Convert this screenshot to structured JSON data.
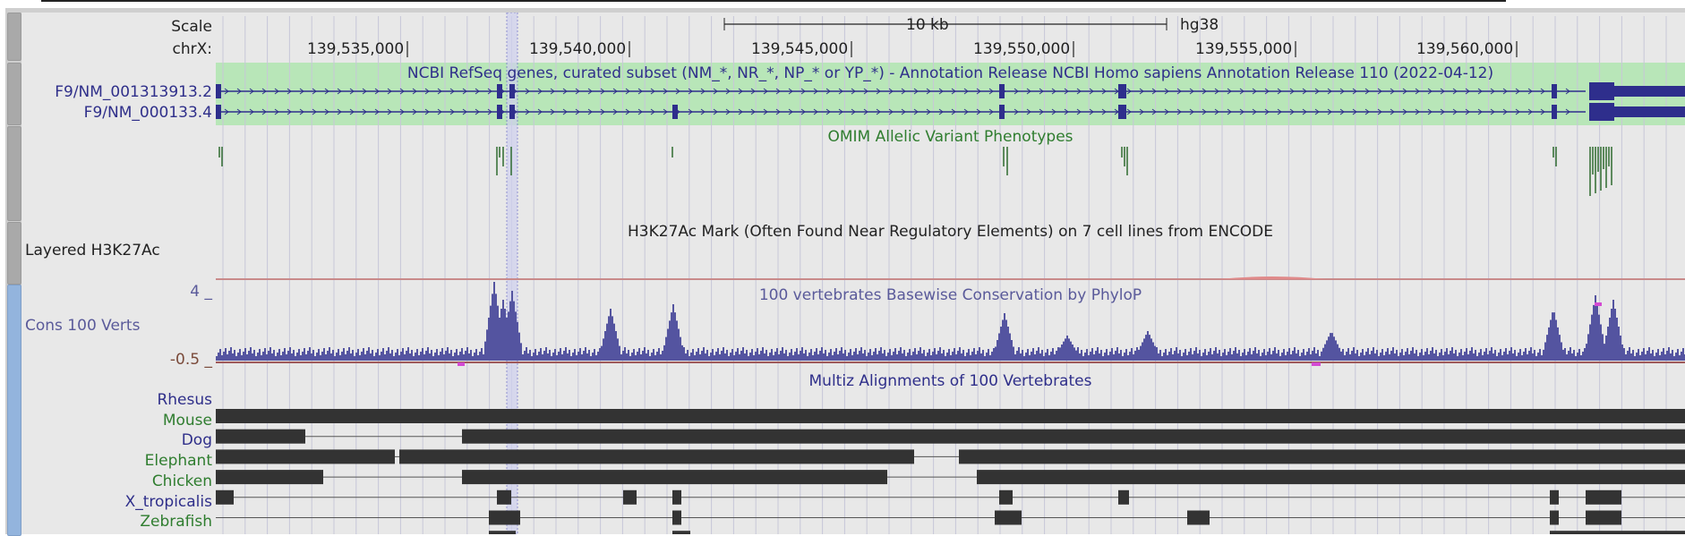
{
  "ruler": {
    "scale_label": "Scale",
    "chrom_label": "chrX:",
    "scalebar_label": "10 kb",
    "assembly": "hg38",
    "positions": [
      "139,535,000",
      "139,540,000",
      "139,545,000",
      "139,550,000",
      "139,555,000",
      "139,560,000"
    ]
  },
  "refseq": {
    "title": "NCBI RefSeq genes, curated subset (NM_*, NR_*, NP_* or YP_*) - Annotation Release NCBI Homo sapiens Annotation Release 110 (2022-04-12)",
    "transcripts": [
      "F9/NM_001313913.2",
      "F9/NM_000133.4"
    ]
  },
  "omim": {
    "title": "OMIM Allelic Variant Phenotypes"
  },
  "h3k27ac": {
    "side_label": "Layered H3K27Ac",
    "title": "H3K27Ac Mark (Often Found Near Regulatory Elements) on 7 cell lines from ENCODE"
  },
  "cons": {
    "side_label": "Cons 100 Verts",
    "title": "100 vertebrates Basewise Conservation by PhyloP",
    "ymax_label": "4 _",
    "ymin_label": "-0.5 _"
  },
  "multiz": {
    "title": "Multiz Alignments of 100 Vertebrates",
    "species": [
      "Rhesus",
      "Mouse",
      "Dog",
      "Elephant",
      "Chicken",
      "X_tropicalis",
      "Zebrafish"
    ]
  },
  "colors": {
    "refseq_bg": "#b8e6b8",
    "gene": "#2e2e8c",
    "omim": "#2f6b2f",
    "phylop": "#5454a0",
    "highlight": "#cfd0ee"
  }
}
